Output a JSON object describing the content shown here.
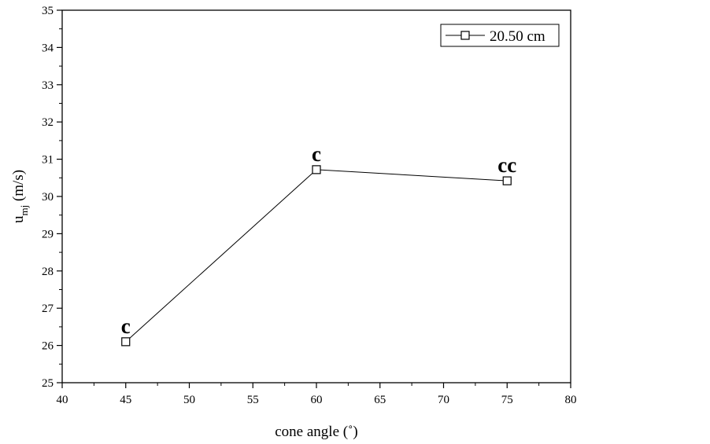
{
  "chart_data": {
    "type": "line",
    "title": "",
    "xlabel": "cone angle (˚)",
    "ylabel_main": "u",
    "ylabel_sub": "mj",
    "ylabel_unit": " (m/s)",
    "xlim": [
      40,
      80
    ],
    "ylim": [
      25,
      35
    ],
    "x_ticks": [
      40,
      45,
      50,
      55,
      60,
      65,
      70,
      75,
      80
    ],
    "y_ticks": [
      25,
      26,
      27,
      28,
      29,
      30,
      31,
      32,
      33,
      34,
      35
    ],
    "grid": false,
    "legend_position": "top-right",
    "series": [
      {
        "name": "20.50 cm",
        "marker": "open-square",
        "color": "#000000",
        "x": [
          45,
          60,
          75
        ],
        "y": [
          26.1,
          30.72,
          30.42
        ]
      }
    ],
    "annotations": [
      {
        "text": "c",
        "x": 45,
        "y": 26.1
      },
      {
        "text": "c",
        "x": 60,
        "y": 30.72
      },
      {
        "text": "cc",
        "x": 75,
        "y": 30.42
      }
    ]
  }
}
